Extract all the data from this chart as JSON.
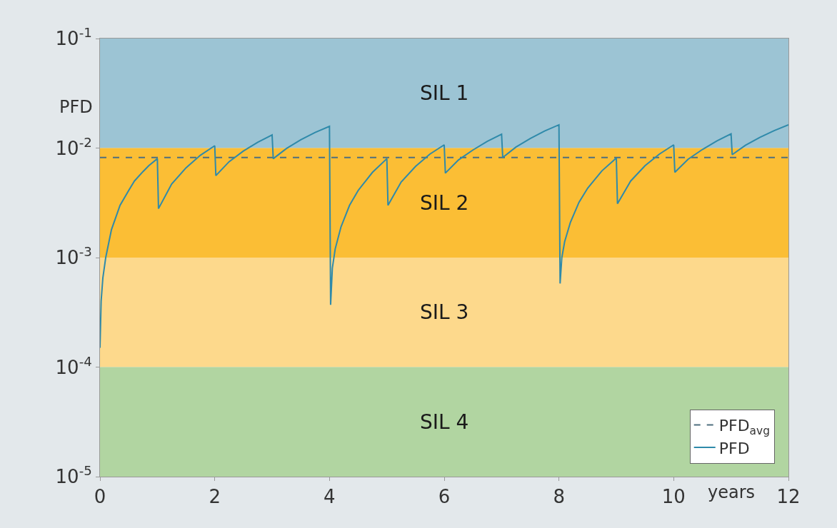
{
  "chart_data": {
    "type": "line",
    "ylabel": "PFD",
    "xlabel": "years",
    "log": "y",
    "grid": false,
    "legend": "bottom right",
    "xlim": [
      0,
      12
    ],
    "xticks": [
      0,
      2,
      4,
      6,
      8,
      10,
      12
    ],
    "ylim": [
      1e-05,
      0.1
    ],
    "yticks": [
      {
        "value": 1e-05,
        "label": "10$^{-5}$"
      },
      {
        "value": 0.0001,
        "label": "10$^{-4}$"
      },
      {
        "value": 0.001,
        "label": "10$^{-3}$"
      },
      {
        "value": 0.01,
        "label": "10$^{-2}$"
      },
      {
        "value": 0.1,
        "label": "10$^{-1}$"
      }
    ],
    "bands": [
      {
        "axis": "y",
        "from": 0.01,
        "to": 0.1,
        "label": "SIL 1",
        "color": "#9cc4d4"
      },
      {
        "axis": "y",
        "from": 0.001,
        "to": 0.01,
        "label": "SIL 2",
        "color": "#fbbe35"
      },
      {
        "axis": "y",
        "from": 0.0001,
        "to": 0.001,
        "label": "SIL 3",
        "color": "#fdd98c"
      },
      {
        "axis": "y",
        "from": 1e-05,
        "to": 0.0001,
        "label": "SIL 4",
        "color": "#b1d5a1"
      }
    ],
    "series": [
      {
        "name": "PFD$_{avg}$",
        "color": "#4f6f7e",
        "line_style": "dashed",
        "x": [
          0,
          12
        ],
        "values": [
          0.0082,
          0.0082
        ]
      },
      {
        "name": "PFD",
        "color": "#2f8aaa",
        "line_style": "solid",
        "x": [
          0,
          0.02,
          0.05,
          0.1,
          0.2,
          0.35,
          0.5,
          0.6,
          0.75,
          0.85,
          1.0,
          1.02,
          1.25,
          1.5,
          1.75,
          2.0,
          2.02,
          2.25,
          2.5,
          2.75,
          3.0,
          3.02,
          3.25,
          3.5,
          3.75,
          4.0,
          4.02,
          4.05,
          4.1,
          4.2,
          4.35,
          4.5,
          4.75,
          5.0,
          5.02,
          5.25,
          5.5,
          5.75,
          6.0,
          6.02,
          6.25,
          6.5,
          6.75,
          7.0,
          7.02,
          7.25,
          7.5,
          7.75,
          8.0,
          8.02,
          8.05,
          8.1,
          8.2,
          8.35,
          8.5,
          8.75,
          9.0,
          9.02,
          9.25,
          9.5,
          9.75,
          10.0,
          10.02,
          10.25,
          10.5,
          10.75,
          11.0,
          11.02,
          11.25,
          11.5,
          11.75,
          12.0
        ],
        "values": [
          0.00015,
          0.0004,
          0.00065,
          0.001,
          0.0018,
          0.003,
          0.0041,
          0.005,
          0.0061,
          0.0069,
          0.008,
          0.0028,
          0.0047,
          0.0066,
          0.0086,
          0.0105,
          0.0056,
          0.0075,
          0.0094,
          0.0113,
          0.0132,
          0.008,
          0.0099,
          0.0119,
          0.0139,
          0.0158,
          0.00037,
          0.0008,
          0.0012,
          0.0019,
          0.003,
          0.0041,
          0.006,
          0.008,
          0.003,
          0.0049,
          0.0068,
          0.0088,
          0.0107,
          0.0059,
          0.0078,
          0.0096,
          0.0115,
          0.0134,
          0.0082,
          0.0102,
          0.0122,
          0.0143,
          0.0163,
          0.00058,
          0.001,
          0.0014,
          0.0021,
          0.0032,
          0.0043,
          0.0062,
          0.0081,
          0.0031,
          0.005,
          0.0069,
          0.0088,
          0.0107,
          0.006,
          0.0079,
          0.0097,
          0.0116,
          0.0135,
          0.0087,
          0.0106,
          0.0125,
          0.0144,
          0.0163
        ]
      }
    ]
  }
}
